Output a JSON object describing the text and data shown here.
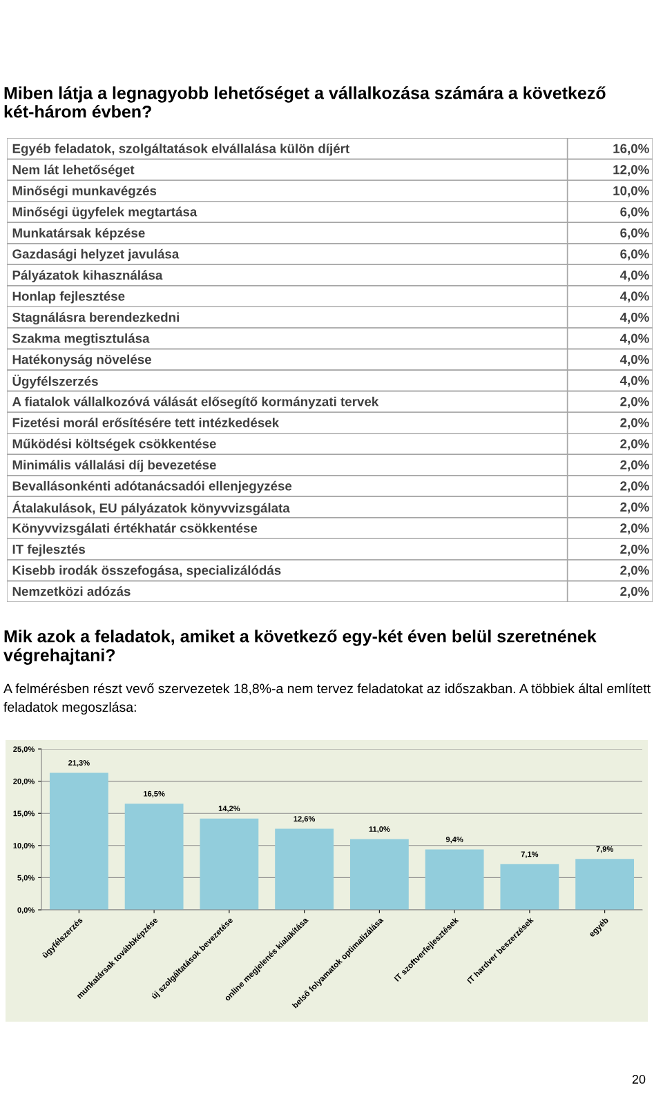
{
  "chart_data": [
    {
      "type": "other",
      "title": "Miben látja a legnagyobb lehetőséget a vállalkozása számára a következő két-három évben?",
      "categories": [
        "Egyéb feladatok, szolgáltatások elvállalása külön díjért",
        "Nem lát lehetőséget",
        "Minőségi munkavégzés",
        "Minőségi ügyfelek megtartása",
        "Munkatársak képzése",
        "Gazdasági helyzet javulása",
        "Pályázatok kihasználása",
        "Honlap fejlesztése",
        "Stagnálásra berendezkedni",
        "Szakma megtisztulása",
        "Hatékonyság növelése",
        "Ügyfélszerzés",
        "A fiatalok vállalkozóvá válását elősegítő kormányzati tervek",
        "Fizetési morál erősítésére tett intézkedések",
        "Működési költségek csökkentése",
        "Minimális vállalási díj bevezetése",
        "Bevallásonkénti adótanácsadói ellenjegyzése",
        "Átalakulások, EU pályázatok könyvvizsgálata",
        "Könyvvizsgálati értékhatár csökkentése",
        "IT fejlesztés",
        "Kisebb irodák összefogása, specializálódás",
        "Nemzetközi adózás"
      ],
      "value_labels": [
        "16,0%",
        "12,0%",
        "10,0%",
        "6,0%",
        "6,0%",
        "6,0%",
        "4,0%",
        "4,0%",
        "4,0%",
        "4,0%",
        "4,0%",
        "4,0%",
        "2,0%",
        "2,0%",
        "2,0%",
        "2,0%",
        "2,0%",
        "2,0%",
        "2,0%",
        "2,0%",
        "2,0%",
        "2,0%"
      ]
    },
    {
      "type": "bar",
      "title": "Mik azok a feladatok, amiket a következő egy-két éven belül szeretnének végrehajtani?",
      "subtitle": "A felmérésben részt vevő szervezetek 18,8%-a nem tervez feladatokat az időszakban. A többiek által említett feladatok megoszlása:",
      "categories": [
        "ügyfélszerzés",
        "munkatársak továbbképzése",
        "új szolgáltatások bevezetése",
        "online megjelenés kialakítása",
        "belső folyamatok optimalizálása",
        "IT szoftverfejlesztések",
        "IT hardver beszerzések",
        "egyéb"
      ],
      "values": [
        21.3,
        16.5,
        14.2,
        12.6,
        11.0,
        9.4,
        7.1,
        7.9
      ],
      "value_labels": [
        "21,3%",
        "16,5%",
        "14,2%",
        "12,6%",
        "11,0%",
        "9,4%",
        "7,1%",
        "7,9%"
      ],
      "color": "#92cddc",
      "ylim": [
        0,
        25
      ],
      "yticks": [
        {
          "value": 0,
          "label": "0,0%"
        },
        {
          "value": 5,
          "label": "5,0%"
        },
        {
          "value": 10,
          "label": "10,0%"
        },
        {
          "value": 15,
          "label": "15,0%"
        },
        {
          "value": 20,
          "label": "20,0%"
        },
        {
          "value": 25,
          "label": "25,0%"
        }
      ],
      "grid": "y",
      "annotations": [
        "20"
      ]
    }
  ]
}
